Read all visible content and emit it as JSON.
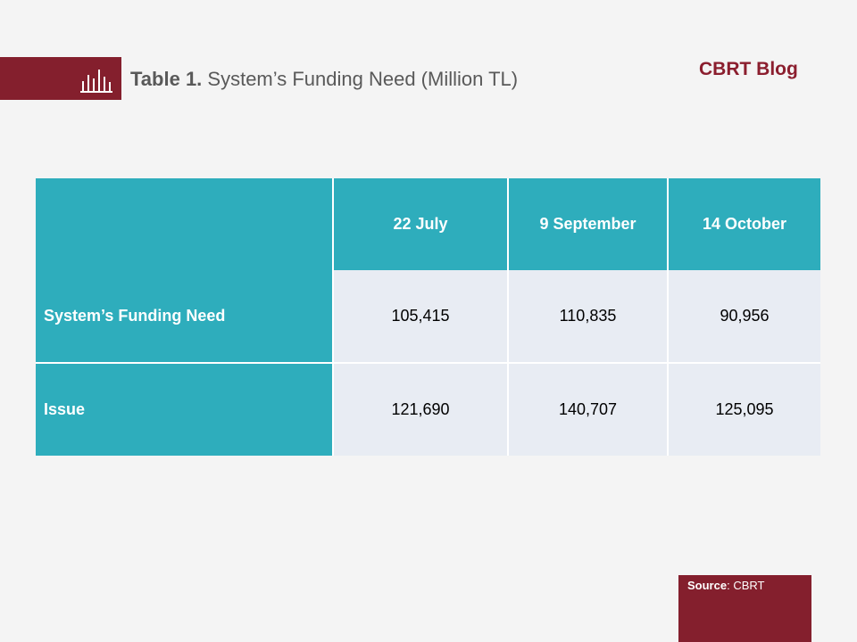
{
  "header": {
    "title_bold": "Table 1.",
    "title_rest": " System’s Funding Need (Million TL)",
    "brand": "CBRT Blog",
    "icon": "bar-chart-icon"
  },
  "table": {
    "columns": [
      "",
      "22 July",
      "9 September",
      "14 October"
    ],
    "rows": [
      {
        "label": "System’s Funding Need",
        "values": [
          "105,415",
          "110,835",
          "90,956"
        ]
      },
      {
        "label": "Issue",
        "values": [
          "121,690",
          "140,707",
          "125,095"
        ]
      }
    ]
  },
  "footer": {
    "source_label": "Source",
    "source_sep": ": ",
    "source_value": "CBRT"
  },
  "colors": {
    "accent_red": "#841f2d",
    "teal": "#2eadbc",
    "cell_bg": "#e8ecf3"
  }
}
